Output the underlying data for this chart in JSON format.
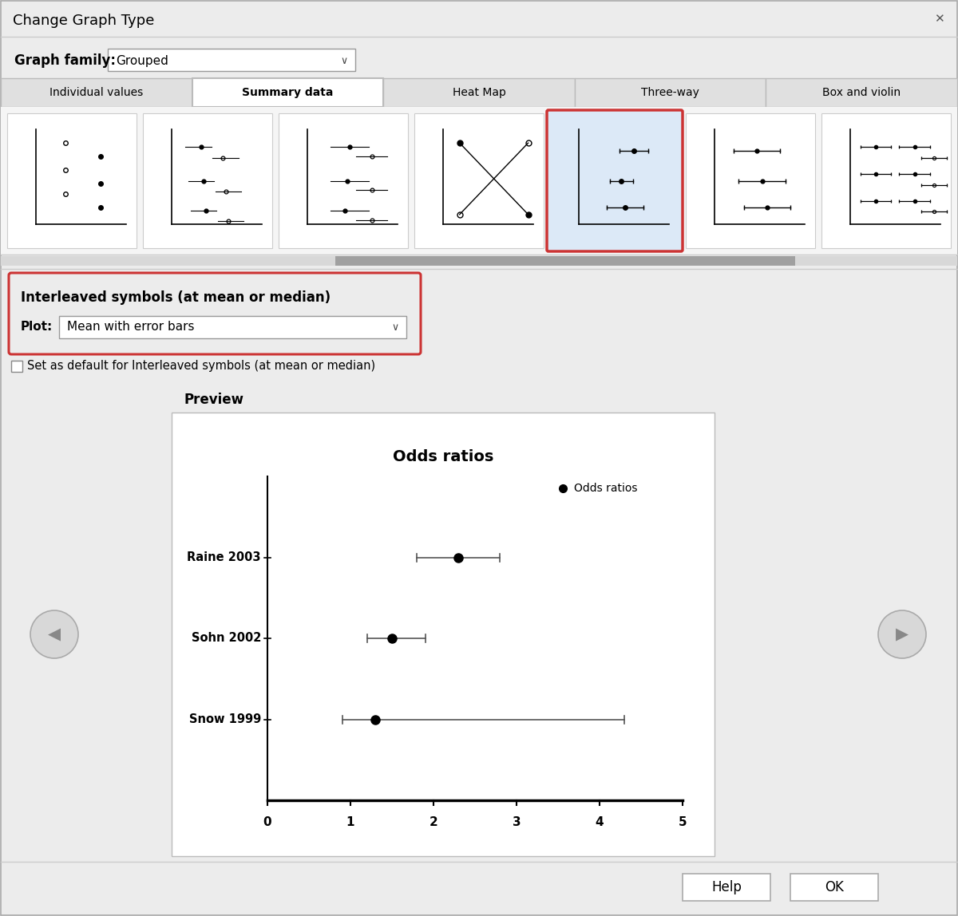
{
  "title": "Change Graph Type",
  "graph_family_label": "Graph family:",
  "graph_family_value": "Grouped",
  "tabs": [
    "Individual values",
    "Summary data",
    "Heat Map",
    "Three-way",
    "Box and violin"
  ],
  "active_tab": 1,
  "interleaved_label": "Interleaved symbols (at mean or median)",
  "plot_label": "Plot:",
  "plot_value": "Mean with error bars",
  "checkbox_label": "Set as default for Interleaved symbols (at mean or median)",
  "preview_label": "Preview",
  "plot_title": "Odds ratios",
  "legend_label": "Odds ratios",
  "studies": [
    "Raine 2003",
    "Sohn 2002",
    "Snow 1999"
  ],
  "centers": [
    2.3,
    1.5,
    1.3
  ],
  "ci_low": [
    1.8,
    1.2,
    0.9
  ],
  "ci_high": [
    2.8,
    1.9,
    4.3
  ],
  "xlim": [
    0,
    5
  ],
  "xticks": [
    0,
    1,
    2,
    3,
    4,
    5
  ],
  "dialog_bg": "#ececec",
  "preview_bg": "#ffffff",
  "selected_icon_bg": "#dce9f7",
  "selected_icon_border": "#cc3333",
  "tab_active_bg": "#ffffff",
  "tab_inactive_bg": "#e0e0e0",
  "icon_area_bg": "#f5f5f5",
  "interleaved_border": "#cc3333",
  "title_fontsize": 13,
  "tab_fontsize": 10,
  "body_fontsize": 11,
  "small_fontsize": 9
}
